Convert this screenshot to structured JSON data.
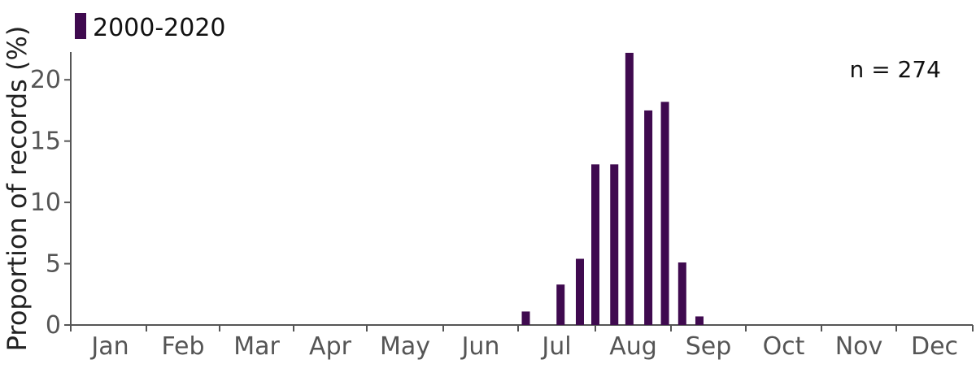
{
  "chart_data": {
    "type": "bar",
    "ylabel": "Proportion of records (%)",
    "legend": {
      "label": "2000-2020",
      "placement": "top-left"
    },
    "annotation": "n = 274",
    "series_color": "#3f0a4f",
    "ylim": [
      0,
      22.2
    ],
    "yticks": [
      0,
      5,
      10,
      15,
      20
    ],
    "months": [
      "Jan",
      "Feb",
      "Mar",
      "Apr",
      "May",
      "Jun",
      "Jul",
      "Aug",
      "Sep",
      "Oct",
      "Nov",
      "Dec"
    ],
    "bars": [
      {
        "month": "Jul",
        "position": 0.1,
        "value": 1.1
      },
      {
        "month": "Jul",
        "position": 0.55,
        "value": 3.3
      },
      {
        "month": "Jul",
        "position": 0.8,
        "value": 5.4
      },
      {
        "month": "Aug",
        "position": 0.0,
        "value": 13.1
      },
      {
        "month": "Aug",
        "position": 0.25,
        "value": 13.1
      },
      {
        "month": "Aug",
        "position": 0.45,
        "value": 22.2
      },
      {
        "month": "Aug",
        "position": 0.7,
        "value": 17.5
      },
      {
        "month": "Aug",
        "position": 0.92,
        "value": 18.2
      },
      {
        "month": "Sep",
        "position": 0.15,
        "value": 5.1
      },
      {
        "month": "Sep",
        "position": 0.38,
        "value": 0.7
      }
    ]
  }
}
